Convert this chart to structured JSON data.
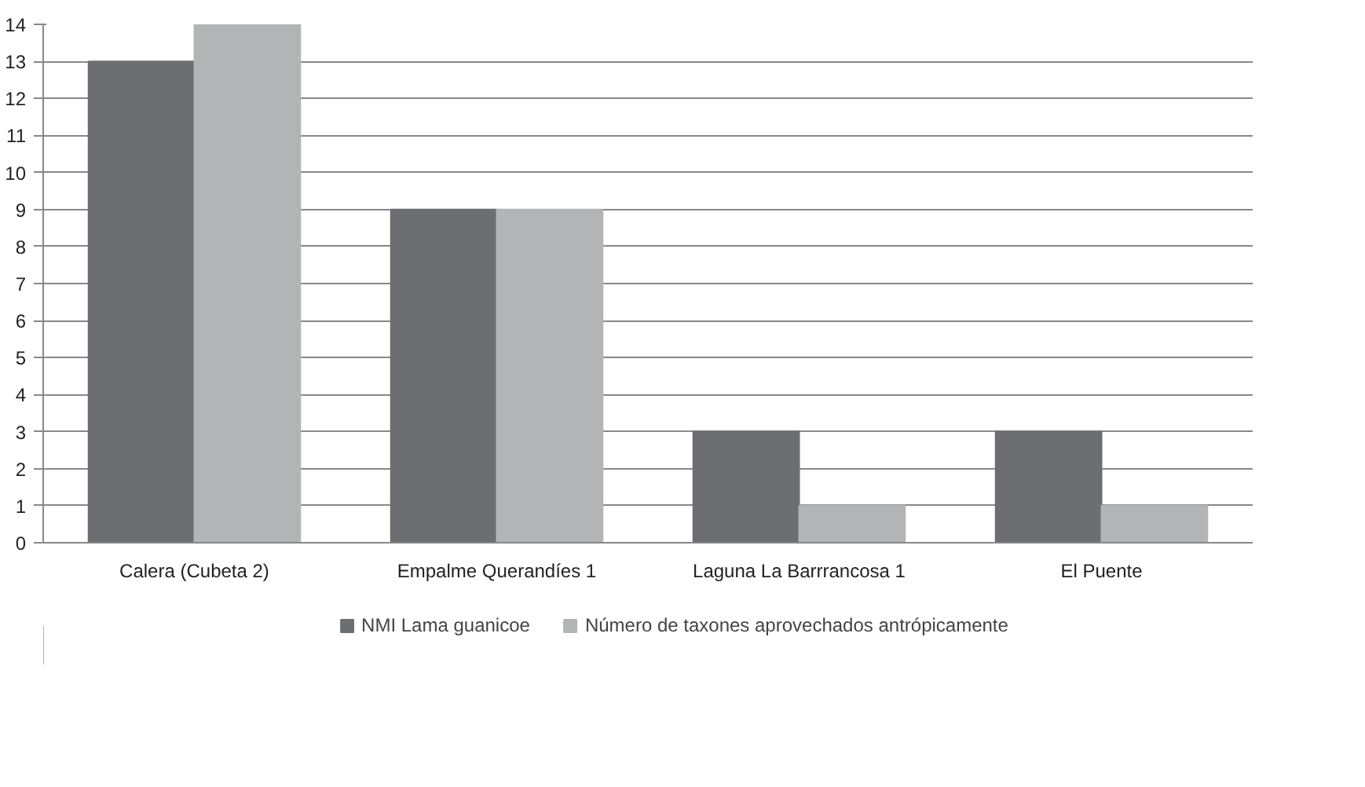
{
  "chart_data": {
    "type": "bar",
    "categories": [
      "Calera (Cubeta 2)",
      "Empalme Querandíes 1",
      "Laguna La Barrrancosa 1",
      "El Puente"
    ],
    "series": [
      {
        "name": "NMI Lama guanicoe",
        "color": "#6d6e71",
        "values": [
          13,
          9,
          3,
          3
        ]
      },
      {
        "name": "Número de taxones aprovechados antrópicamente",
        "color": "#b3b4b6",
        "values": [
          14,
          9,
          1,
          1
        ]
      }
    ],
    "ylim": [
      0,
      14
    ],
    "yticks": [
      0,
      1,
      2,
      3,
      4,
      5,
      6,
      7,
      8,
      9,
      10,
      11,
      12,
      13,
      14
    ],
    "grid": "y",
    "legend": "bottom"
  }
}
